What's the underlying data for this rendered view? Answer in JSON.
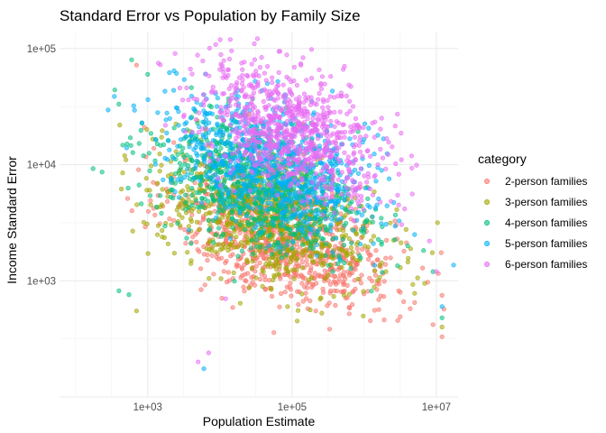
{
  "chart_data": {
    "type": "scatter",
    "title": "Standard Error vs Population by Family Size",
    "xlabel": "Population Estimate",
    "ylabel": "Income Standard Error",
    "x_scale": "log10",
    "y_scale": "log10",
    "xlim": [
      60,
      20000000
    ],
    "ylim": [
      100,
      140000
    ],
    "x_ticks": [
      1000,
      100000,
      10000000
    ],
    "x_tick_labels": [
      "1e+03",
      "1e+05",
      "1e+07"
    ],
    "y_ticks": [
      1000,
      10000,
      100000
    ],
    "y_tick_labels": [
      "1e+03",
      "1e+04",
      "1e+05"
    ],
    "grid": true,
    "legend": {
      "title": "category",
      "position": "right"
    },
    "point_alpha": 0.55,
    "series": [
      {
        "name": "2-person families",
        "color": "#F8766D",
        "center": {
          "log_x": 4.9,
          "log_y": 3.35
        },
        "spread": {
          "sd_log_x": 0.75,
          "sd_log_y": 0.28,
          "corr": -0.45
        },
        "n_points": 900,
        "points": [
          [
            700,
            72000
          ],
          [
            900,
            21000
          ],
          [
            2300,
            15500
          ],
          [
            4500,
            7000
          ],
          [
            6500,
            5600
          ],
          [
            10000,
            3200
          ],
          [
            30000,
            2400
          ],
          [
            100000,
            1800
          ],
          [
            400000,
            1400
          ],
          [
            1500000,
            950
          ],
          [
            3000000,
            820
          ],
          [
            5000000,
            650
          ],
          [
            9000000,
            420
          ],
          [
            12000000,
            330
          ],
          [
            12000000,
            750
          ]
        ]
      },
      {
        "name": "3-person families",
        "color": "#A3A500",
        "center": {
          "log_x": 4.65,
          "log_y": 3.55
        },
        "spread": {
          "sd_log_x": 0.75,
          "sd_log_y": 0.3,
          "corr": -0.45
        },
        "n_points": 800,
        "points": [
          [
            450,
            8500
          ],
          [
            500,
            11000
          ],
          [
            1100,
            4500
          ],
          [
            3000,
            3500
          ],
          [
            700,
            550
          ],
          [
            20000,
            3000
          ],
          [
            200000,
            2200
          ],
          [
            800000,
            1500
          ],
          [
            2000000,
            1200
          ],
          [
            5000000,
            780
          ],
          [
            12000000,
            400
          ]
        ]
      },
      {
        "name": "4-person families",
        "color": "#00BF7D",
        "center": {
          "log_x": 4.55,
          "log_y": 3.8
        },
        "spread": {
          "sd_log_x": 0.72,
          "sd_log_y": 0.3,
          "corr": -0.45
        },
        "n_points": 800,
        "points": [
          [
            350,
            44000
          ],
          [
            600,
            80000
          ],
          [
            1000,
            60000
          ],
          [
            3500,
            20000
          ],
          [
            400,
            820
          ],
          [
            550,
            760
          ],
          [
            8000,
            8000
          ],
          [
            60000,
            5000
          ],
          [
            300000,
            4000
          ],
          [
            1000000,
            2600
          ],
          [
            4000000,
            2000
          ],
          [
            9000000,
            1200
          ],
          [
            12000000,
            480
          ]
        ]
      },
      {
        "name": "5-person families",
        "color": "#00B0F6",
        "center": {
          "log_x": 4.7,
          "log_y": 4.0
        },
        "spread": {
          "sd_log_x": 0.68,
          "sd_log_y": 0.3,
          "corr": -0.45
        },
        "n_points": 800,
        "points": [
          [
            2000,
            62000
          ],
          [
            6000,
            40000
          ],
          [
            15000,
            20000
          ],
          [
            60000,
            12000
          ],
          [
            300000,
            7000
          ],
          [
            1500000,
            4500
          ],
          [
            5000000,
            2500
          ],
          [
            12000000,
            600
          ],
          [
            6000,
            175
          ]
        ]
      },
      {
        "name": "6-person families",
        "color": "#E76BF3",
        "center": {
          "log_x": 5.0,
          "log_y": 4.3
        },
        "spread": {
          "sd_log_x": 0.65,
          "sd_log_y": 0.28,
          "corr": -0.45
        },
        "n_points": 850,
        "points": [
          [
            30000,
            110000
          ],
          [
            10000,
            66000
          ],
          [
            20000,
            75000
          ],
          [
            100000,
            40000
          ],
          [
            500000,
            15000
          ],
          [
            1000000,
            8000
          ],
          [
            3000000,
            4500
          ],
          [
            8000000,
            2200
          ],
          [
            5000,
            200
          ],
          [
            7000,
            240
          ],
          [
            12000,
            700
          ],
          [
            10000000,
            1200
          ]
        ]
      }
    ]
  }
}
